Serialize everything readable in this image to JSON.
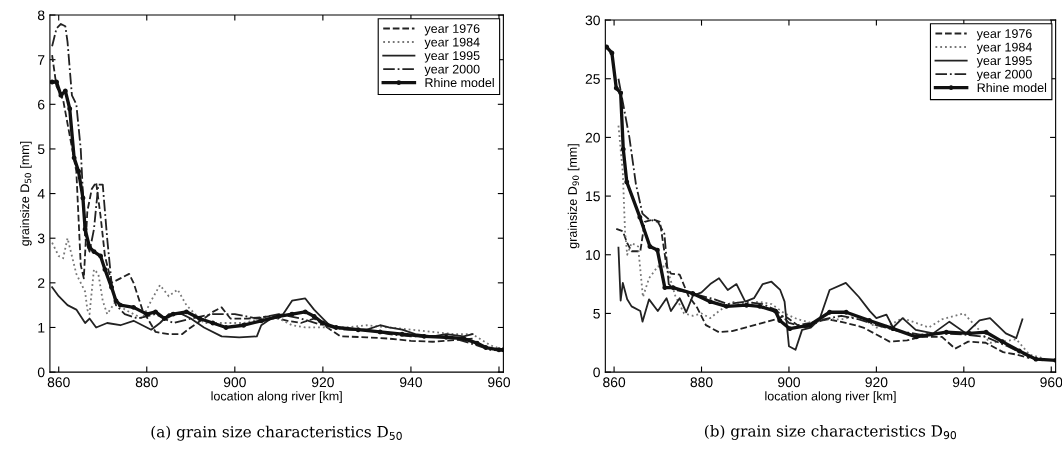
{
  "chart_data": [
    {
      "type": "line",
      "xlabel": "location along river [km]",
      "ylabel": "grainsize D$_{50}$ [mm]",
      "xlim": [
        858,
        961
      ],
      "ylim": [
        0,
        8
      ],
      "xticks": [
        860,
        880,
        900,
        920,
        940,
        960
      ],
      "yticks": [
        0,
        1,
        2,
        3,
        4,
        5,
        6,
        7,
        8
      ],
      "legend": "top right",
      "annotations": [
        "(a) grain size characteristics D$_{50}$"
      ],
      "series": [
        {
          "name": "year 1976",
          "color": "#222222",
          "line_style": "dashed",
          "marker": "none",
          "x": [
            858.5,
            859.5,
            861,
            862.5,
            864,
            865,
            865.7,
            866.5,
            867.5,
            868.5,
            869.5,
            870.5,
            872,
            874,
            876,
            877,
            879,
            880.5,
            882,
            885,
            888,
            890,
            893,
            895,
            897,
            899,
            903,
            908,
            912,
            915,
            918,
            921,
            924,
            930,
            935,
            940,
            945,
            950,
            954
          ],
          "values": [
            7.1,
            6.4,
            6.1,
            5.3,
            4.5,
            2.4,
            2.1,
            3.6,
            4.1,
            4.25,
            3.5,
            2.6,
            2.0,
            2.1,
            2.2,
            2.0,
            1.4,
            1.15,
            0.9,
            0.85,
            0.85,
            1.0,
            1.2,
            1.35,
            1.45,
            1.2,
            1.2,
            1.25,
            1.15,
            1.1,
            1.2,
            1.0,
            0.8,
            0.78,
            0.75,
            0.7,
            0.68,
            0.72,
            0.75
          ]
        },
        {
          "name": "year 1984",
          "color": "#777777",
          "line_style": "dotted",
          "marker": "none",
          "x": [
            858.5,
            860,
            861,
            862,
            863,
            864,
            865,
            866,
            866.5,
            867,
            868,
            869,
            870,
            871,
            873,
            875,
            877,
            879,
            881,
            883,
            885,
            887,
            889,
            891,
            893,
            895,
            898,
            902,
            906,
            910,
            913,
            916,
            920,
            925,
            930,
            935,
            940,
            945,
            950,
            954,
            958,
            961
          ],
          "values": [
            2.9,
            2.6,
            2.55,
            3.0,
            2.6,
            2.2,
            2.0,
            1.8,
            1.4,
            1.3,
            2.3,
            2.2,
            1.6,
            1.3,
            1.6,
            1.4,
            1.3,
            1.2,
            1.6,
            1.95,
            1.7,
            1.85,
            1.5,
            1.3,
            1.1,
            1.1,
            1.1,
            1.1,
            1.2,
            1.2,
            1.05,
            1.0,
            1.0,
            1.0,
            1.05,
            1.0,
            0.95,
            0.9,
            0.85,
            0.85,
            0.6,
            0.5
          ]
        },
        {
          "name": "year 1995",
          "color": "#222222",
          "line_style": "solid",
          "marker": "none",
          "x": [
            858.5,
            860,
            862,
            864,
            866,
            867,
            868.5,
            871,
            874,
            877,
            879,
            881,
            883,
            885,
            888,
            890,
            893,
            897,
            901,
            905,
            906,
            909,
            911,
            913,
            916,
            918,
            920,
            922,
            926,
            930,
            933,
            935,
            938,
            941,
            945,
            948,
            952,
            954
          ],
          "values": [
            1.9,
            1.7,
            1.5,
            1.4,
            1.1,
            1.2,
            1.0,
            1.1,
            1.05,
            1.15,
            1.05,
            0.95,
            1.1,
            1.3,
            1.3,
            1.2,
            1.0,
            0.8,
            0.78,
            0.8,
            1.05,
            1.25,
            1.3,
            1.6,
            1.65,
            1.4,
            1.2,
            1.0,
            0.95,
            0.95,
            1.05,
            1.0,
            0.95,
            0.85,
            0.8,
            0.85,
            0.8,
            0.85
          ]
        },
        {
          "name": "year 2000",
          "color": "#222222",
          "line_style": "dashdot",
          "marker": "none",
          "x": [
            858.5,
            859.5,
            860.5,
            861.5,
            862,
            863,
            864,
            865,
            866,
            867,
            868,
            869,
            870,
            871,
            872,
            873,
            875,
            878,
            882,
            886,
            890,
            895,
            900,
            905,
            910,
            915,
            920,
            925,
            930,
            935,
            940,
            945,
            950,
            955,
            958,
            961
          ],
          "values": [
            7.3,
            7.7,
            7.8,
            7.75,
            7.4,
            6.2,
            6.0,
            5.0,
            3.0,
            2.7,
            3.2,
            4.2,
            4.2,
            3.0,
            2.0,
            1.5,
            1.3,
            1.2,
            1.3,
            1.1,
            1.2,
            1.3,
            1.3,
            1.2,
            1.3,
            1.2,
            1.05,
            0.95,
            0.95,
            0.85,
            0.8,
            0.8,
            0.75,
            0.6,
            0.5,
            0.48
          ]
        },
        {
          "name": "Rhine model",
          "color": "#111111",
          "line_style": "solid",
          "marker": "circle",
          "x": [
            858.5,
            859.5,
            860.5,
            861.5,
            862.5,
            863.5,
            864.5,
            865.5,
            866,
            867,
            868,
            869.5,
            870.5,
            872,
            873,
            874,
            877,
            880,
            882,
            884,
            886,
            889,
            892,
            895,
            898,
            902,
            906,
            910,
            913,
            916,
            918,
            920,
            923,
            928,
            933,
            938,
            943,
            948,
            952,
            955,
            957,
            960,
            961
          ],
          "values": [
            6.5,
            6.5,
            6.2,
            6.3,
            5.9,
            4.8,
            4.5,
            3.9,
            3.2,
            2.8,
            2.7,
            2.6,
            2.3,
            1.9,
            1.6,
            1.5,
            1.45,
            1.3,
            1.35,
            1.2,
            1.3,
            1.35,
            1.2,
            1.1,
            1.0,
            1.05,
            1.15,
            1.25,
            1.3,
            1.35,
            1.25,
            1.1,
            1.0,
            0.95,
            0.9,
            0.85,
            0.8,
            0.78,
            0.75,
            0.65,
            0.55,
            0.5,
            0.5
          ]
        }
      ]
    },
    {
      "type": "line",
      "xlabel": "location along river [km]",
      "ylabel": "grainsize D$_{90}$ [mm]",
      "xlim": [
        858,
        961
      ],
      "ylim": [
        0,
        30
      ],
      "xticks": [
        860,
        880,
        900,
        920,
        940,
        960
      ],
      "yticks": [
        0,
        5,
        10,
        15,
        20,
        25,
        30
      ],
      "legend": "top right",
      "annotations": [
        "(b) grain size characteristics D$_{90}$"
      ],
      "series": [
        {
          "name": "year 1976",
          "color": "#222222",
          "line_style": "dashed",
          "marker": "none",
          "x": [
            860.5,
            862,
            863,
            864,
            864.5,
            866,
            867,
            869,
            870.5,
            872,
            873,
            875,
            877,
            879,
            881,
            884,
            887,
            890,
            894,
            897,
            899,
            902,
            905,
            909,
            913,
            917,
            920,
            923,
            927,
            930,
            935,
            938,
            941,
            945,
            949,
            952,
            955
          ],
          "values": [
            12.2,
            12.0,
            11.0,
            10.3,
            10.3,
            10.3,
            12.8,
            13.0,
            12.8,
            9.0,
            8.4,
            8.3,
            6.5,
            5.5,
            4.0,
            3.4,
            3.5,
            3.8,
            4.2,
            4.5,
            4.8,
            4.0,
            4.2,
            4.5,
            4.2,
            3.8,
            3.2,
            2.6,
            2.7,
            3.0,
            3.0,
            2.0,
            2.6,
            2.5,
            1.7,
            1.5,
            1.2
          ]
        },
        {
          "name": "year 1984",
          "color": "#777777",
          "line_style": "dotted",
          "marker": "none",
          "x": [
            861,
            862,
            862.5,
            863,
            864,
            865.5,
            866.6,
            868,
            870,
            872,
            874,
            876,
            878,
            880,
            882,
            884,
            887,
            890,
            893,
            896,
            899,
            902,
            905,
            908,
            912,
            916,
            920,
            923,
            926,
            929,
            932,
            935,
            938,
            940,
            943,
            946,
            949,
            952,
            955,
            958
          ],
          "values": [
            21,
            17,
            12,
            10,
            11,
            10.7,
            6.4,
            8.0,
            9.0,
            9.0,
            6.5,
            5.0,
            4.8,
            5.0,
            4.6,
            5.2,
            6.0,
            5.8,
            6.0,
            5.8,
            5.0,
            4.5,
            4.2,
            4.5,
            4.5,
            4.8,
            3.8,
            4.0,
            4.6,
            4.2,
            3.8,
            4.5,
            4.8,
            5.0,
            3.8,
            2.5,
            2.6,
            2.8,
            1.5,
            1.2
          ]
        },
        {
          "name": "year 1995",
          "color": "#222222",
          "line_style": "solid",
          "marker": "none",
          "x": [
            861,
            861.5,
            862,
            863,
            864,
            866,
            866.5,
            868,
            870,
            872,
            873,
            875,
            876.5,
            878,
            880,
            882,
            884,
            886,
            888,
            890,
            892,
            894,
            896,
            898,
            899,
            900,
            901.5,
            903,
            905,
            907,
            909.3,
            913,
            916,
            918.5,
            920,
            922.3,
            923.8,
            926,
            929,
            933,
            936.7,
            940.5,
            943.6,
            946,
            949.6,
            952,
            953.4
          ],
          "values": [
            10.6,
            6.1,
            7.6,
            6.2,
            5.6,
            5.2,
            4.3,
            6.2,
            5.2,
            6.3,
            5.2,
            6.3,
            5.1,
            6.5,
            6.8,
            7.5,
            8.0,
            7.0,
            7.5,
            6.0,
            6.3,
            7.5,
            7.7,
            7.0,
            6.0,
            2.2,
            1.9,
            3.6,
            3.8,
            4.5,
            7.0,
            7.6,
            6.4,
            5.2,
            4.6,
            4.9,
            3.8,
            4.6,
            3.6,
            3.3,
            4.3,
            3.3,
            4.4,
            4.6,
            3.3,
            2.9,
            4.5
          ]
        },
        {
          "name": "year 2000",
          "color": "#222222",
          "line_style": "dashdot",
          "marker": "none",
          "x": [
            861,
            862,
            863.5,
            865,
            866.5,
            868,
            870,
            871.5,
            872.5,
            874,
            877,
            880,
            883,
            886,
            890,
            894,
            897,
            900,
            904,
            908,
            912,
            916,
            920,
            925,
            930,
            935,
            940,
            945,
            950,
            955,
            958
          ],
          "values": [
            25,
            23,
            20,
            16,
            13.5,
            13,
            12.8,
            11.8,
            7.5,
            7.0,
            6.8,
            6.5,
            6.2,
            5.8,
            6.0,
            5.8,
            5.3,
            4.2,
            3.8,
            4.5,
            4.8,
            4.5,
            4.0,
            3.5,
            3.2,
            3.3,
            3.2,
            3.0,
            2.2,
            1.3,
            1.0
          ]
        },
        {
          "name": "Rhine model",
          "color": "#111111",
          "line_style": "solid",
          "marker": "circle",
          "x": [
            858.3,
            859.5,
            860.5,
            861.5,
            862.1,
            862.9,
            865.9,
            868.2,
            869.9,
            871.6,
            873.5,
            878,
            882,
            885.7,
            890.3,
            893.3,
            896.9,
            897.9,
            900.2,
            904.7,
            909.3,
            913.1,
            918.4,
            923.8,
            929.1,
            936,
            941.3,
            945.1,
            948.8,
            952.7,
            956.5,
            961
          ],
          "values": [
            27.7,
            27.2,
            24.2,
            23.8,
            19,
            16.2,
            13.2,
            10.7,
            10.4,
            7.2,
            7.2,
            6.7,
            6.0,
            5.6,
            5.7,
            5.6,
            5.2,
            4.4,
            3.7,
            4.0,
            5.1,
            5.1,
            4.4,
            3.7,
            3.0,
            3.4,
            3.3,
            3.4,
            2.6,
            1.8,
            1.1,
            1.0
          ]
        }
      ]
    }
  ]
}
